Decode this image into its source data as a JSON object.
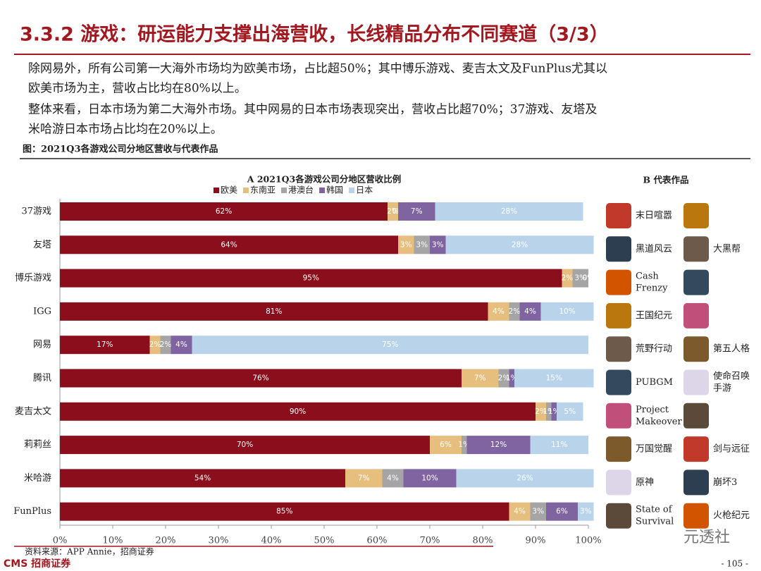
{
  "header": {
    "title": "3.3.2 游戏：研运能力支撑出海营收，长线精品分布不同赛道（3/3）"
  },
  "paragraphs": [
    [
      "除网易外，所有公司第一大海外市场均为欧美市场，占比超50%；其中博乐游戏、麦吉太文及FunPlus尤其以",
      "欧美市场为主，营收占比均在80%以上。"
    ],
    [
      "整体来看，日本市场为第二大海外市场。其中网易的日本市场表现突出，营收占比超70%；37游戏、友塔及",
      "米哈游日本市场占比均在20%以上。"
    ]
  ],
  "figure_caption": "图：2021Q3各游戏公司分地区营收与代表作品",
  "chart_data": {
    "type": "stacked_barh",
    "title": "A 2021Q3各游戏公司分地区营收比例",
    "categories": [
      "37游戏",
      "友塔",
      "博乐游戏",
      "IGG",
      "网易",
      "腾讯",
      "麦吉太文",
      "莉莉丝",
      "米哈游",
      "FunPlus"
    ],
    "series": [
      {
        "name": "欧美",
        "color": "#8b0e1c",
        "values": [
          62,
          64,
          95,
          81,
          17,
          76,
          90,
          70,
          54,
          85
        ],
        "value_labels": [
          "62%",
          "64%",
          "95%",
          "81%",
          "17%",
          "76%",
          "90%",
          "70%",
          "54%",
          "85%"
        ]
      },
      {
        "name": "东南亚",
        "color": "#e6bf7f",
        "values": [
          2,
          3,
          2,
          4,
          2,
          7,
          2,
          6,
          7,
          4
        ],
        "value_labels": [
          "2%",
          "3%",
          "2%",
          "4%",
          "2%",
          "7%",
          "2%",
          "6%",
          "7%",
          "4%"
        ]
      },
      {
        "name": "港澳台",
        "color": "#a5a5a5",
        "values": [
          0,
          3,
          3,
          2,
          2,
          2,
          1,
          1,
          4,
          3
        ],
        "value_labels": [
          "0%",
          "3%",
          "3%",
          "2%",
          "2%",
          "2%",
          "1%",
          "1%",
          "4%",
          "3%"
        ]
      },
      {
        "name": "韩国",
        "color": "#8064a2",
        "values": [
          7,
          3,
          0,
          4,
          4,
          1,
          1,
          12,
          10,
          6
        ],
        "value_labels": [
          "7%",
          "3%",
          "0%",
          "4%",
          "4%",
          "1%",
          "1%",
          "12%",
          "10%",
          "6%"
        ]
      },
      {
        "name": "日本",
        "color": "#b8d3ea",
        "values": [
          28,
          28,
          0,
          10,
          75,
          15,
          5,
          11,
          26,
          3
        ],
        "value_labels": [
          "28%",
          "28%",
          "0%",
          "10%",
          "75%",
          "15%",
          "5%",
          "11%",
          "26%",
          "3%"
        ]
      }
    ],
    "xlim": [
      0,
      100
    ],
    "xticks": [
      {
        "value": 0,
        "label": "0%"
      },
      {
        "value": 10,
        "label": "10%"
      },
      {
        "value": 20,
        "label": "20%"
      },
      {
        "value": 30,
        "label": "30%"
      },
      {
        "value": 40,
        "label": "40%"
      },
      {
        "value": 50,
        "label": "50%"
      },
      {
        "value": 60,
        "label": "60%"
      },
      {
        "value": 70,
        "label": "70%"
      },
      {
        "value": 80,
        "label": "80%"
      },
      {
        "value": 90,
        "label": "90%"
      },
      {
        "value": 100,
        "label": "100%"
      }
    ]
  },
  "games_title": "B 代表作品",
  "games": [
    {
      "left": [
        "末日喧嚣"
      ]
    },
    {
      "left": [
        "黑道风云"
      ],
      "right": [
        "大黑帮"
      ]
    },
    {
      "left": [
        "Cash",
        "Frenzy"
      ]
    },
    {
      "left": [
        "王国纪元"
      ]
    },
    {
      "left": [
        "荒野行动"
      ],
      "right": [
        "第五人格"
      ]
    },
    {
      "left": [
        "PUBGM"
      ],
      "right": [
        "使命召唤",
        "手游"
      ]
    },
    {
      "left": [
        "Project",
        "Makeover"
      ]
    },
    {
      "left": [
        "万国觉醒"
      ],
      "right": [
        "剑与远征"
      ]
    },
    {
      "left": [
        "原神"
      ],
      "right": [
        "崩坏3"
      ]
    },
    {
      "left": [
        "State of",
        "Survival"
      ],
      "right": [
        "火枪纪元"
      ]
    }
  ],
  "source": "资料来源：APP Annie，招商证券",
  "logo": "CMS 招商证券",
  "watermark": "元透社",
  "page_number": "- 105 -"
}
